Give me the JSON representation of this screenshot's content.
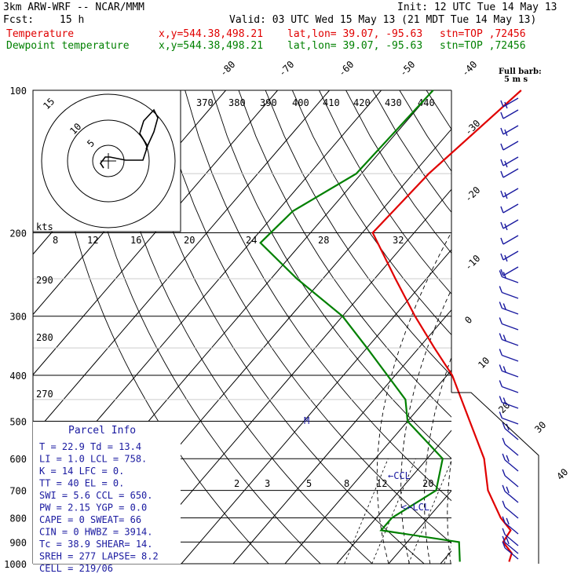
{
  "header": {
    "model": "3km ARW-WRF -- NCAR/MMM",
    "init": "Init: 12 UTC Tue 14 May 13",
    "fcst_label": "Fcst:",
    "fcst_value": "15 h",
    "valid": "Valid: 03 UTC Wed 15 May 13 (21 MDT Tue 14 May 13)",
    "temp_legend": "Temperature",
    "dew_legend": "Dewpoint temperature",
    "xy": "x,y=544.38,498.21",
    "latlon": "lat,lon= 39.07, -95.63",
    "stn": "stn=TOP ,72456"
  },
  "barb_legend": {
    "line1": "Full barb:",
    "line2": "5 m s"
  },
  "colors": {
    "temperature": "#e00000",
    "dewpoint": "#008000",
    "info": "#1a1aa0",
    "barbs": "#1a1aa0",
    "isotherm": "#000000"
  },
  "hodograph": {
    "rings": [
      "5",
      "10",
      "15"
    ],
    "units": "kts"
  },
  "parcel_info": {
    "title": "Parcel Info",
    "left": [
      [
        "T",
        "22.9"
      ],
      [
        "LI",
        "1.0"
      ],
      [
        "K",
        "14"
      ],
      [
        "TT",
        "40"
      ],
      [
        "SWI",
        "5.6"
      ],
      [
        "PW",
        "2.15"
      ],
      [
        "CAPE",
        "0"
      ],
      [
        "CIN",
        "0"
      ],
      [
        "Tc",
        "38.9"
      ],
      [
        "SREH",
        "277"
      ],
      [
        "CELL",
        "219/06"
      ]
    ],
    "right": [
      [
        "Td",
        "13.4"
      ],
      [
        "LCL",
        "758."
      ],
      [
        "LFC",
        "0."
      ],
      [
        "EL",
        "0."
      ],
      [
        "CCL",
        "650."
      ],
      [
        "YGP",
        "0.0"
      ],
      [
        "SWEAT",
        "66"
      ],
      [
        "HWBZ",
        "3914."
      ],
      [
        "SHEAR",
        "14."
      ],
      [
        "LAPSE",
        "8.2"
      ]
    ]
  },
  "level_markers": {
    "ccl": "CCL",
    "lcl": "LCL"
  },
  "chart_data": {
    "type": "skew-t",
    "pressure_levels": [
      100,
      200,
      300,
      400,
      500,
      600,
      700,
      800,
      900,
      1000
    ],
    "temperature_ticks": [
      "-80",
      "-70",
      "-60",
      "-50",
      "-40",
      "-30",
      "-20",
      "-10",
      "0",
      "10",
      "20",
      "30",
      "40"
    ],
    "theta_labels": [
      "370",
      "380",
      "390",
      "400",
      "410",
      "420",
      "430",
      "440",
      "290",
      "280",
      "270"
    ],
    "mixing_ratio_labels": [
      "8",
      "12",
      "16",
      "20",
      "24",
      "28",
      "32",
      "2",
      "3",
      "5",
      "8",
      "12",
      "20"
    ],
    "temperature_profile": [
      {
        "p": 100,
        "t": -53
      },
      {
        "p": 150,
        "t": -57
      },
      {
        "p": 200,
        "t": -58
      },
      {
        "p": 250,
        "t": -46
      },
      {
        "p": 300,
        "t": -36
      },
      {
        "p": 350,
        "t": -27
      },
      {
        "p": 400,
        "t": -19
      },
      {
        "p": 500,
        "t": -8
      },
      {
        "p": 600,
        "t": 1
      },
      {
        "p": 700,
        "t": 7
      },
      {
        "p": 800,
        "t": 14
      },
      {
        "p": 850,
        "t": 18
      },
      {
        "p": 900,
        "t": 18.5
      },
      {
        "p": 950,
        "t": 22
      },
      {
        "p": 990,
        "t": 22.9
      }
    ],
    "dewpoint_profile": [
      {
        "p": 100,
        "t": -70
      },
      {
        "p": 150,
        "t": -71
      },
      {
        "p": 180,
        "t": -77
      },
      {
        "p": 210,
        "t": -78
      },
      {
        "p": 250,
        "t": -65
      },
      {
        "p": 300,
        "t": -50
      },
      {
        "p": 350,
        "t": -40
      },
      {
        "p": 450,
        "t": -24
      },
      {
        "p": 500,
        "t": -20
      },
      {
        "p": 600,
        "t": -7
      },
      {
        "p": 700,
        "t": -3
      },
      {
        "p": 800,
        "t": -7
      },
      {
        "p": 850,
        "t": -7
      },
      {
        "p": 900,
        "t": 10
      },
      {
        "p": 990,
        "t": 13.4
      }
    ]
  }
}
